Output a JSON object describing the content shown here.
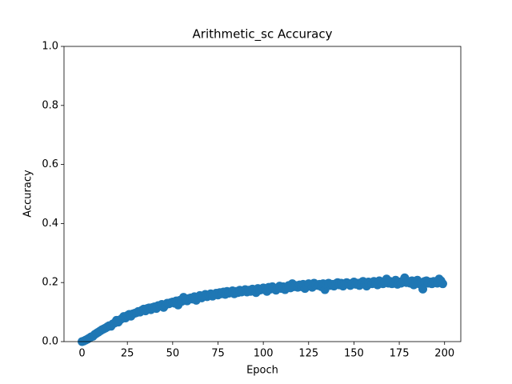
{
  "chart_data": {
    "type": "scatter",
    "title": "Arithmetic_sc Accuracy",
    "x_label": "Epoch",
    "y_label": "Accuracy",
    "color": "#1f77b4",
    "grid": false,
    "xlim": [
      -9.95,
      208.95
    ],
    "ylim": [
      0,
      1
    ],
    "xticks": [
      0,
      25,
      50,
      75,
      100,
      125,
      150,
      175,
      200
    ],
    "yticks": [
      {
        "value": 0,
        "label": "0.0"
      },
      0.2,
      0.4,
      0.6,
      0.8,
      {
        "value": 1,
        "label": "1.0"
      }
    ],
    "x": [
      0,
      1,
      2,
      3,
      4,
      5,
      6,
      7,
      8,
      9,
      10,
      11,
      12,
      13,
      14,
      15,
      16,
      17,
      18,
      19,
      20,
      21,
      22,
      23,
      24,
      25,
      26,
      27,
      28,
      29,
      30,
      31,
      32,
      33,
      34,
      35,
      36,
      37,
      38,
      39,
      40,
      41,
      42,
      43,
      44,
      45,
      46,
      47,
      48,
      49,
      50,
      51,
      52,
      53,
      54,
      55,
      56,
      57,
      58,
      59,
      60,
      61,
      62,
      63,
      64,
      65,
      66,
      67,
      68,
      69,
      70,
      71,
      72,
      73,
      74,
      75,
      76,
      77,
      78,
      79,
      80,
      81,
      82,
      83,
      84,
      85,
      86,
      87,
      88,
      89,
      90,
      91,
      92,
      93,
      94,
      95,
      96,
      97,
      98,
      99,
      100,
      101,
      102,
      103,
      104,
      105,
      106,
      107,
      108,
      109,
      110,
      111,
      112,
      113,
      114,
      115,
      116,
      117,
      118,
      119,
      120,
      121,
      122,
      123,
      124,
      125,
      126,
      127,
      128,
      129,
      130,
      131,
      132,
      133,
      134,
      135,
      136,
      137,
      138,
      139,
      140,
      141,
      142,
      143,
      144,
      145,
      146,
      147,
      148,
      149,
      150,
      151,
      152,
      153,
      154,
      155,
      156,
      157,
      158,
      159,
      160,
      161,
      162,
      163,
      164,
      165,
      166,
      167,
      168,
      169,
      170,
      171,
      172,
      173,
      174,
      175,
      176,
      177,
      178,
      179,
      180,
      181,
      182,
      183,
      184,
      185,
      186,
      187,
      188,
      189,
      190,
      191,
      192,
      193,
      194,
      195,
      196,
      197,
      198,
      199
    ],
    "values": [
      0.0,
      0.002,
      0.005,
      0.008,
      0.012,
      0.016,
      0.018,
      0.024,
      0.028,
      0.032,
      0.036,
      0.04,
      0.043,
      0.046,
      0.05,
      0.054,
      0.052,
      0.06,
      0.063,
      0.072,
      0.066,
      0.074,
      0.078,
      0.085,
      0.08,
      0.088,
      0.092,
      0.086,
      0.094,
      0.096,
      0.098,
      0.102,
      0.1,
      0.106,
      0.11,
      0.104,
      0.112,
      0.114,
      0.108,
      0.116,
      0.118,
      0.112,
      0.122,
      0.12,
      0.126,
      0.116,
      0.124,
      0.13,
      0.128,
      0.132,
      0.134,
      0.13,
      0.138,
      0.124,
      0.14,
      0.136,
      0.15,
      0.142,
      0.138,
      0.146,
      0.148,
      0.144,
      0.152,
      0.14,
      0.15,
      0.156,
      0.148,
      0.154,
      0.16,
      0.152,
      0.158,
      0.162,
      0.154,
      0.16,
      0.164,
      0.158,
      0.166,
      0.162,
      0.168,
      0.16,
      0.17,
      0.164,
      0.168,
      0.172,
      0.162,
      0.17,
      0.166,
      0.174,
      0.168,
      0.172,
      0.176,
      0.168,
      0.174,
      0.17,
      0.178,
      0.172,
      0.166,
      0.18,
      0.174,
      0.176,
      0.182,
      0.176,
      0.17,
      0.184,
      0.178,
      0.186,
      0.18,
      0.174,
      0.182,
      0.188,
      0.18,
      0.186,
      0.176,
      0.184,
      0.19,
      0.182,
      0.196,
      0.186,
      0.19,
      0.184,
      0.192,
      0.186,
      0.194,
      0.18,
      0.19,
      0.196,
      0.188,
      0.184,
      0.198,
      0.192,
      0.19,
      0.194,
      0.186,
      0.196,
      0.176,
      0.192,
      0.198,
      0.19,
      0.194,
      0.188,
      0.196,
      0.2,
      0.192,
      0.198,
      0.188,
      0.194,
      0.2,
      0.196,
      0.19,
      0.198,
      0.202,
      0.194,
      0.198,
      0.19,
      0.2,
      0.204,
      0.196,
      0.188,
      0.202,
      0.198,
      0.196,
      0.204,
      0.198,
      0.192,
      0.206,
      0.2,
      0.196,
      0.202,
      0.212,
      0.198,
      0.204,
      0.196,
      0.2,
      0.208,
      0.194,
      0.202,
      0.198,
      0.206,
      0.216,
      0.2,
      0.204,
      0.198,
      0.206,
      0.192,
      0.202,
      0.208,
      0.196,
      0.2,
      0.178,
      0.204,
      0.206,
      0.198,
      0.202,
      0.196,
      0.204,
      0.2,
      0.198,
      0.212,
      0.206,
      0.196
    ]
  }
}
